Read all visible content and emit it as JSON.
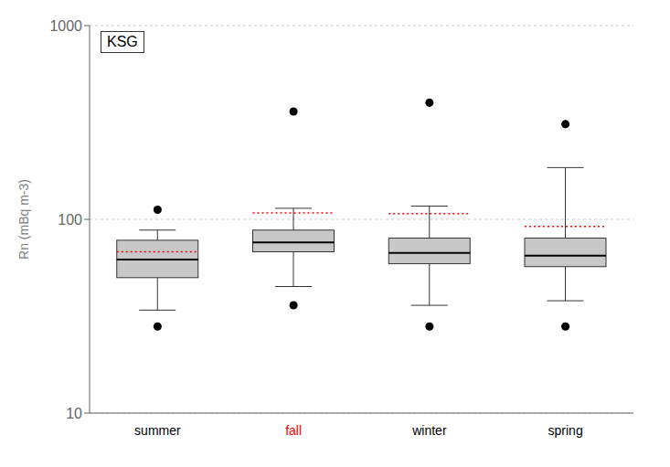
{
  "chart_data": {
    "type": "box",
    "title": "KSG",
    "y_label": "Rn (mBq m-3)",
    "categories": [
      "summer",
      "fall",
      "winter",
      "spring"
    ],
    "colors": [
      "black",
      "red",
      "black",
      "black"
    ],
    "color": "#c8c8c8",
    "log": "y",
    "ylim": [
      10,
      1000
    ],
    "yticks": [
      10,
      100,
      1000
    ],
    "grid": true,
    "boxes": [
      {
        "whislo": 34,
        "q1": 50,
        "med": 62,
        "mean": 68,
        "q3": 78,
        "whishi": 88,
        "fliers": [
          112,
          28
        ]
      },
      {
        "whislo": 45,
        "q1": 68,
        "med": 76,
        "mean": 108,
        "q3": 88,
        "whishi": 114,
        "fliers": [
          360,
          36
        ]
      },
      {
        "whislo": 36,
        "q1": 59,
        "med": 67,
        "mean": 107,
        "q3": 80,
        "whishi": 117,
        "fliers": [
          400,
          28
        ]
      },
      {
        "whislo": 38,
        "q1": 57,
        "med": 65,
        "mean": 92,
        "q3": 80,
        "whishi": 185,
        "fliers": [
          310,
          28
        ]
      }
    ]
  }
}
